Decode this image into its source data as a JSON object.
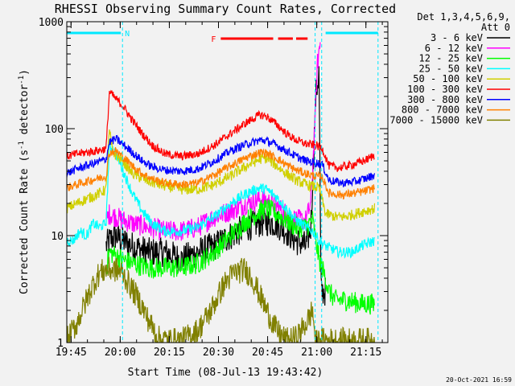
{
  "title": "RHESSI Observing Summary Count Rates, Corrected",
  "footer_date": "20-Oct-2021 16:59",
  "chart_data": {
    "type": "line",
    "title": "RHESSI Observing Summary Count Rates, Corrected",
    "xlabel": "Start Time (08-Jul-13 19:43:42)",
    "ylabel": "Corrected Count Rate (s⁻¹ detector⁻¹)",
    "ylabel_main": "Corrected Count Rate (s",
    "ylabel_sup1": "-1",
    "ylabel_mid": " detector",
    "ylabel_sup2": "-1",
    "ylabel_end": ")",
    "yscale": "log",
    "ylim": [
      1,
      1000
    ],
    "xlim_minutes": [
      0,
      98
    ],
    "x_start": "19:43:42",
    "x_ticks": [
      {
        "label": "19:45",
        "min": 1.3
      },
      {
        "label": "20:00",
        "min": 16.3
      },
      {
        "label": "20:15",
        "min": 31.3
      },
      {
        "label": "20:30",
        "min": 46.3
      },
      {
        "label": "20:45",
        "min": 61.3
      },
      {
        "label": "21:00",
        "min": 76.3
      },
      {
        "label": "21:15",
        "min": 91.3
      }
    ],
    "y_ticks": [
      {
        "label": "1",
        "value": 1
      },
      {
        "label": "10",
        "value": 10
      },
      {
        "label": "100",
        "value": 100
      },
      {
        "label": "1000",
        "value": 1000
      }
    ],
    "legend_header_1": "Det 1,3,4,5,6,9,",
    "legend_header_2": "Att 0",
    "legend_position": "right",
    "flags": [
      {
        "label": "N",
        "color": "#00e8ff",
        "segments": [
          [
            0,
            16.5
          ],
          [
            79,
            95
          ]
        ]
      },
      {
        "label": "F",
        "color": "#ff0000",
        "segments": [
          [
            47,
            63
          ],
          [
            64.5,
            69
          ],
          [
            70,
            73.5
          ]
        ]
      }
    ],
    "vlines_minutes": [
      17.0,
      75.8,
      77.8,
      95.0
    ],
    "series": [
      {
        "name": "3 - 6 keV",
        "color": "#000000",
        "noise": 0.14,
        "points": [
          [
            12,
            8
          ],
          [
            13,
            9
          ],
          [
            15,
            10
          ],
          [
            17,
            9
          ],
          [
            20,
            8
          ],
          [
            25,
            7
          ],
          [
            30,
            7
          ],
          [
            35,
            6
          ],
          [
            40,
            7
          ],
          [
            45,
            8
          ],
          [
            50,
            10
          ],
          [
            55,
            12
          ],
          [
            58,
            13
          ],
          [
            61,
            13.5
          ],
          [
            64,
            13
          ],
          [
            67,
            11
          ],
          [
            70,
            9
          ],
          [
            73,
            8
          ],
          [
            74.5,
            12
          ],
          [
            76,
            200
          ],
          [
            77,
            340
          ],
          [
            77.6,
            3
          ],
          [
            79,
            3
          ]
        ]
      },
      {
        "name": "6 - 12 keV",
        "color": "#ff00ff",
        "noise": 0.1,
        "points": [
          [
            12,
            14
          ],
          [
            13,
            16
          ],
          [
            15,
            15
          ],
          [
            17,
            14
          ],
          [
            20,
            13
          ],
          [
            25,
            12
          ],
          [
            30,
            11
          ],
          [
            35,
            11
          ],
          [
            40,
            12
          ],
          [
            45,
            15
          ],
          [
            50,
            17
          ],
          [
            55,
            20
          ],
          [
            59,
            22
          ],
          [
            61,
            21
          ],
          [
            64,
            19
          ],
          [
            67,
            16
          ],
          [
            70,
            14
          ],
          [
            73,
            14
          ],
          [
            74.5,
            20
          ],
          [
            75.5,
            80
          ],
          [
            76.5,
            400
          ],
          [
            77.5,
            700
          ]
        ]
      },
      {
        "name": "12 - 25 keV",
        "color": "#00ff00",
        "noise": 0.1,
        "points": [
          [
            12,
            5
          ],
          [
            13,
            7
          ],
          [
            15,
            6.5
          ],
          [
            17,
            6
          ],
          [
            20,
            5.5
          ],
          [
            25,
            5
          ],
          [
            30,
            5
          ],
          [
            35,
            5
          ],
          [
            40,
            5.5
          ],
          [
            45,
            7
          ],
          [
            50,
            10
          ],
          [
            55,
            14
          ],
          [
            59,
            17
          ],
          [
            61,
            18
          ],
          [
            64,
            16
          ],
          [
            67,
            14
          ],
          [
            70,
            12
          ],
          [
            73,
            12
          ],
          [
            75,
            14
          ],
          [
            76,
            9
          ],
          [
            77,
            6
          ],
          [
            79,
            4
          ],
          [
            80,
            3
          ],
          [
            82,
            2.5
          ],
          [
            85,
            2.5
          ],
          [
            90,
            2.3
          ],
          [
            94,
            2.3
          ]
        ]
      },
      {
        "name": "25 - 50 keV",
        "color": "#00ffff",
        "noise": 0.05,
        "points": [
          [
            0,
            9
          ],
          [
            2,
            9
          ],
          [
            4,
            11
          ],
          [
            6,
            10
          ],
          [
            8,
            13
          ],
          [
            10,
            12
          ],
          [
            12,
            13
          ],
          [
            13,
            70
          ],
          [
            14,
            65
          ],
          [
            16,
            50
          ],
          [
            18,
            35
          ],
          [
            20,
            25
          ],
          [
            23,
            17
          ],
          [
            26,
            13
          ],
          [
            30,
            11
          ],
          [
            35,
            11
          ],
          [
            40,
            12
          ],
          [
            45,
            15
          ],
          [
            50,
            20
          ],
          [
            55,
            25
          ],
          [
            59,
            28
          ],
          [
            61,
            27
          ],
          [
            64,
            23
          ],
          [
            67,
            18
          ],
          [
            70,
            14
          ],
          [
            73,
            12
          ],
          [
            75,
            11
          ],
          [
            77,
            9
          ],
          [
            79,
            8
          ],
          [
            83,
            7
          ],
          [
            87,
            7
          ],
          [
            90,
            8
          ],
          [
            94,
            9
          ]
        ]
      },
      {
        "name": "50 - 100 keV",
        "color": "#d0d000",
        "noise": 0.05,
        "points": [
          [
            0,
            18
          ],
          [
            3,
            20
          ],
          [
            6,
            22
          ],
          [
            9,
            24
          ],
          [
            12,
            27
          ],
          [
            13,
            95
          ],
          [
            14,
            60
          ],
          [
            17,
            50
          ],
          [
            20,
            38
          ],
          [
            25,
            32
          ],
          [
            30,
            29
          ],
          [
            35,
            27
          ],
          [
            40,
            27
          ],
          [
            45,
            30
          ],
          [
            50,
            36
          ],
          [
            55,
            45
          ],
          [
            59,
            52
          ],
          [
            61,
            53
          ],
          [
            64,
            45
          ],
          [
            67,
            38
          ],
          [
            70,
            33
          ],
          [
            73,
            30
          ],
          [
            75,
            29
          ],
          [
            77,
            28
          ],
          [
            79,
            16
          ],
          [
            82,
            15
          ],
          [
            85,
            15
          ],
          [
            88,
            16
          ],
          [
            91,
            17
          ],
          [
            94,
            18
          ]
        ]
      },
      {
        "name": "100 - 300 keV",
        "color": "#ff0000",
        "noise": 0.04,
        "points": [
          [
            0,
            55
          ],
          [
            3,
            58
          ],
          [
            6,
            60
          ],
          [
            9,
            62
          ],
          [
            12,
            65
          ],
          [
            13,
            220
          ],
          [
            15,
            190
          ],
          [
            17,
            165
          ],
          [
            20,
            120
          ],
          [
            23,
            90
          ],
          [
            26,
            70
          ],
          [
            30,
            58
          ],
          [
            35,
            55
          ],
          [
            40,
            58
          ],
          [
            45,
            70
          ],
          [
            50,
            90
          ],
          [
            55,
            115
          ],
          [
            59,
            135
          ],
          [
            61,
            130
          ],
          [
            64,
            110
          ],
          [
            67,
            90
          ],
          [
            70,
            78
          ],
          [
            73,
            72
          ],
          [
            76,
            70
          ],
          [
            78,
            65
          ],
          [
            80,
            45
          ],
          [
            83,
            43
          ],
          [
            86,
            45
          ],
          [
            89,
            48
          ],
          [
            92,
            52
          ],
          [
            94,
            57
          ]
        ]
      },
      {
        "name": "300 - 800 keV",
        "color": "#0000ff",
        "noise": 0.04,
        "points": [
          [
            0,
            38
          ],
          [
            3,
            42
          ],
          [
            6,
            45
          ],
          [
            9,
            48
          ],
          [
            12,
            52
          ],
          [
            13,
            75
          ],
          [
            15,
            80
          ],
          [
            17,
            72
          ],
          [
            20,
            60
          ],
          [
            23,
            50
          ],
          [
            26,
            44
          ],
          [
            30,
            41
          ],
          [
            35,
            40
          ],
          [
            40,
            42
          ],
          [
            45,
            50
          ],
          [
            50,
            62
          ],
          [
            55,
            72
          ],
          [
            59,
            78
          ],
          [
            61,
            77
          ],
          [
            64,
            70
          ],
          [
            67,
            62
          ],
          [
            70,
            55
          ],
          [
            73,
            50
          ],
          [
            76,
            48
          ],
          [
            78,
            46
          ],
          [
            80,
            33
          ],
          [
            84,
            31
          ],
          [
            88,
            32
          ],
          [
            91,
            34
          ],
          [
            94,
            37
          ]
        ]
      },
      {
        "name": "800 - 7000 keV",
        "color": "#ff8000",
        "noise": 0.04,
        "points": [
          [
            0,
            28
          ],
          [
            3,
            30
          ],
          [
            6,
            32
          ],
          [
            9,
            34
          ],
          [
            12,
            36
          ],
          [
            13,
            60
          ],
          [
            15,
            62
          ],
          [
            17,
            55
          ],
          [
            20,
            45
          ],
          [
            23,
            38
          ],
          [
            26,
            34
          ],
          [
            30,
            31
          ],
          [
            35,
            30
          ],
          [
            40,
            31
          ],
          [
            45,
            37
          ],
          [
            50,
            45
          ],
          [
            55,
            54
          ],
          [
            59,
            60
          ],
          [
            61,
            59
          ],
          [
            64,
            53
          ],
          [
            67,
            46
          ],
          [
            70,
            41
          ],
          [
            73,
            38
          ],
          [
            76,
            36
          ],
          [
            78,
            35
          ],
          [
            80,
            25
          ],
          [
            84,
            24
          ],
          [
            88,
            25
          ],
          [
            91,
            26
          ],
          [
            94,
            28
          ]
        ]
      },
      {
        "name": "7000 - 15000 keV",
        "color": "#808000",
        "noise": 0.12,
        "points": [
          [
            0,
            1.05
          ],
          [
            3,
            1.5
          ],
          [
            6,
            2.5
          ],
          [
            8,
            3.5
          ],
          [
            10,
            4.5
          ],
          [
            12,
            4.8
          ],
          [
            15,
            4.8
          ],
          [
            17,
            4.5
          ],
          [
            19,
            3.5
          ],
          [
            22,
            2.5
          ],
          [
            25,
            1.6
          ],
          [
            28,
            1.1
          ],
          [
            31,
            1.05
          ],
          [
            35,
            1.05
          ],
          [
            40,
            1.3
          ],
          [
            44,
            2
          ],
          [
            48,
            3.5
          ],
          [
            51,
            4.5
          ],
          [
            54,
            4.8
          ],
          [
            56,
            4.3
          ],
          [
            58,
            3.2
          ],
          [
            61,
            2
          ],
          [
            64,
            1.3
          ],
          [
            67,
            1.05
          ],
          [
            70,
            1.1
          ],
          [
            73,
            1.5
          ],
          [
            75,
            2
          ],
          [
            76,
            1
          ],
          [
            78,
            1.05
          ],
          [
            82,
            1.05
          ],
          [
            86,
            1.05
          ],
          [
            90,
            1.05
          ],
          [
            94,
            1.05
          ]
        ]
      }
    ]
  }
}
